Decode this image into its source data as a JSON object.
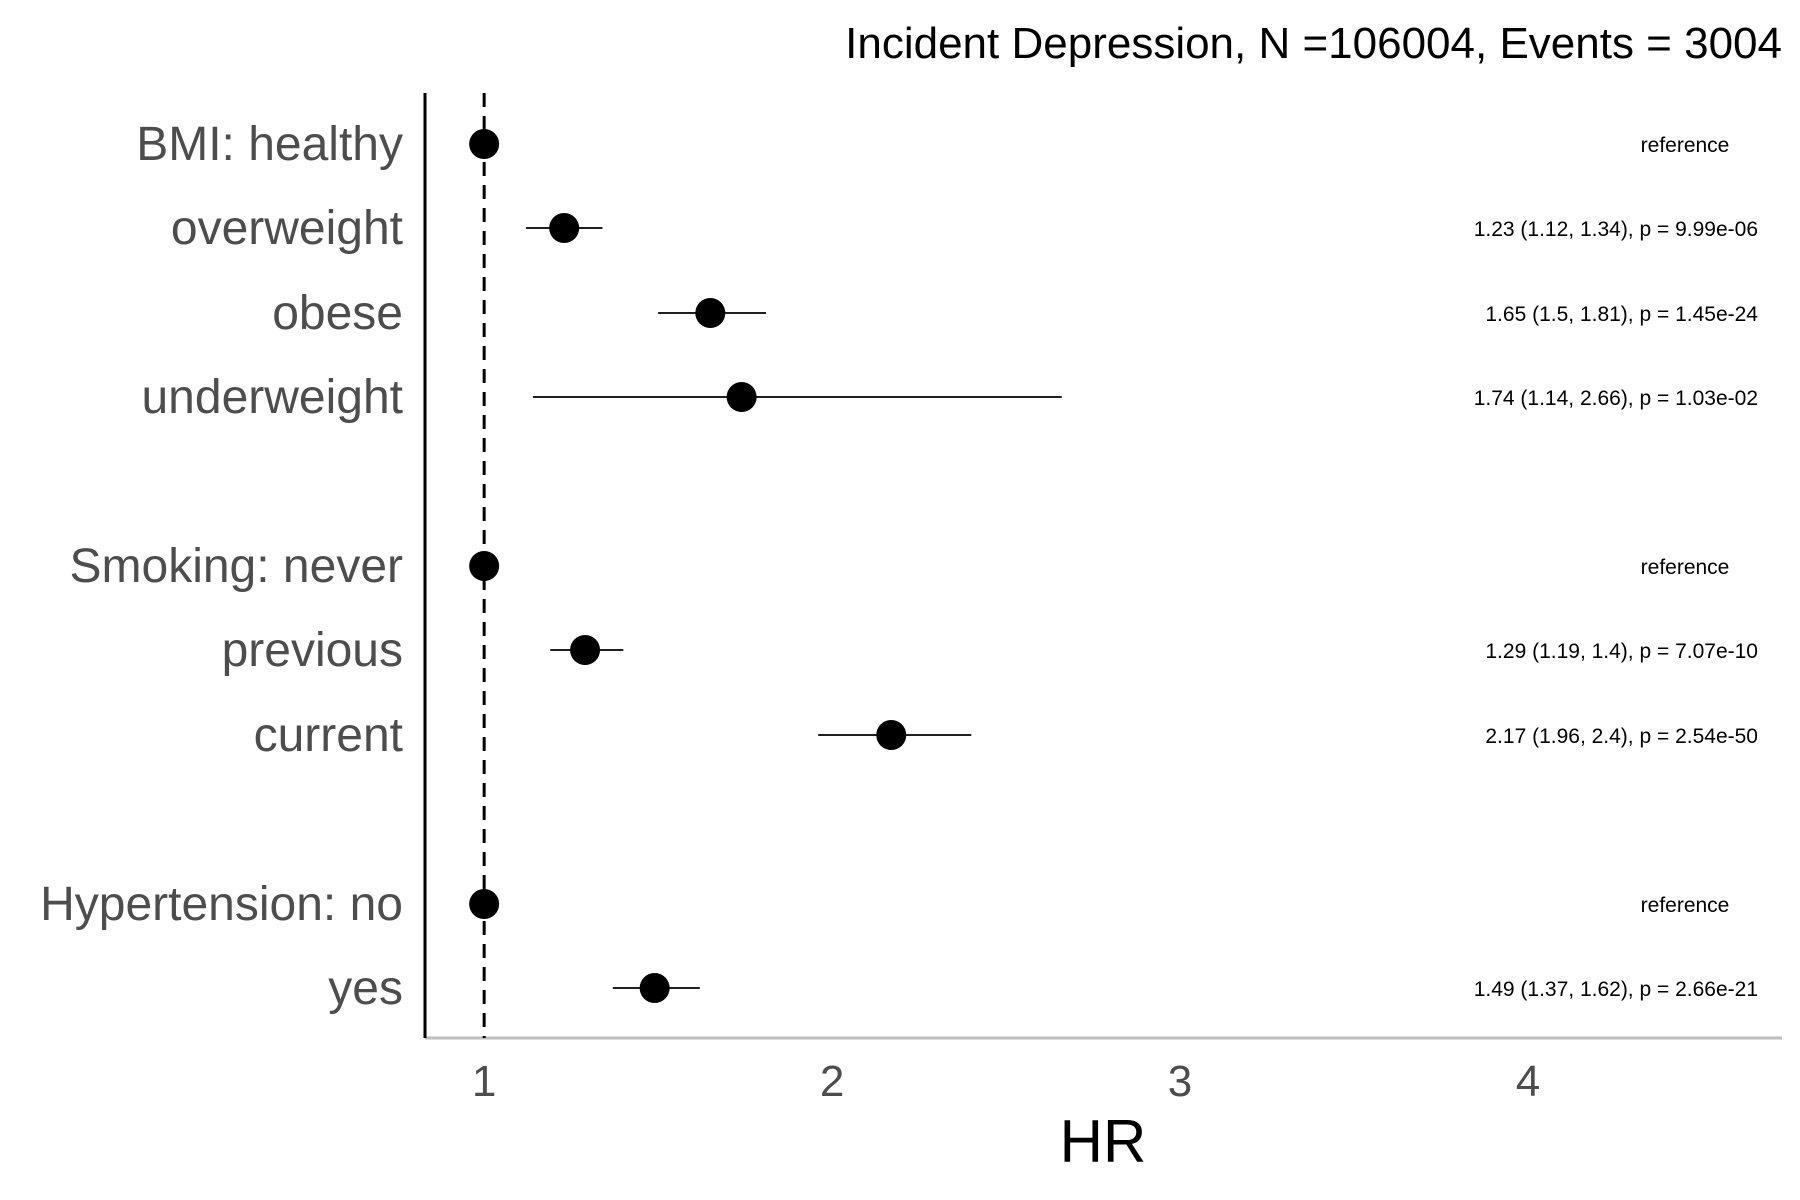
{
  "chart_data": {
    "type": "forest",
    "title": "Incident Depression, N =106004, Events = 3004",
    "xlabel": "HR",
    "ylabel": "",
    "xlim": [
      0.83,
      4.73
    ],
    "x_ticks": [
      1,
      2,
      3,
      4
    ],
    "reference_line": 1,
    "grid": false,
    "legend": "none",
    "rows": [
      {
        "label": "BMI: healthy",
        "hr": 1.0,
        "lower": null,
        "upper": null,
        "annotation": "reference"
      },
      {
        "label": "overweight",
        "hr": 1.23,
        "lower": 1.12,
        "upper": 1.34,
        "annotation": "1.23 (1.12, 1.34), p = 9.99e-06"
      },
      {
        "label": "obese",
        "hr": 1.65,
        "lower": 1.5,
        "upper": 1.81,
        "annotation": "1.65 (1.5, 1.81), p = 1.45e-24"
      },
      {
        "label": "underweight",
        "hr": 1.74,
        "lower": 1.14,
        "upper": 2.66,
        "annotation": "1.74 (1.14, 2.66), p = 1.03e-02"
      },
      {
        "label": "Smoking: never",
        "hr": 1.0,
        "lower": null,
        "upper": null,
        "annotation": "reference"
      },
      {
        "label": "previous",
        "hr": 1.29,
        "lower": 1.19,
        "upper": 1.4,
        "annotation": "1.29 (1.19, 1.4), p = 7.07e-10"
      },
      {
        "label": "current",
        "hr": 2.17,
        "lower": 1.96,
        "upper": 2.4,
        "annotation": "2.17 (1.96, 2.4), p = 2.54e-50"
      },
      {
        "label": "Hypertension: no",
        "hr": 1.0,
        "lower": null,
        "upper": null,
        "annotation": "reference"
      },
      {
        "label": "yes",
        "hr": 1.49,
        "lower": 1.37,
        "upper": 1.62,
        "annotation": "1.49 (1.37, 1.62), p = 2.66e-21"
      }
    ]
  },
  "colors": {
    "point": "#000000",
    "ci_line": "#000000",
    "reference_line": "#000000",
    "y_axis_line": "#000000",
    "x_axis_line": "#bebebe",
    "row_label": "#4d4d4d",
    "tick_label": "#4d4d4d",
    "text": "#000000"
  }
}
